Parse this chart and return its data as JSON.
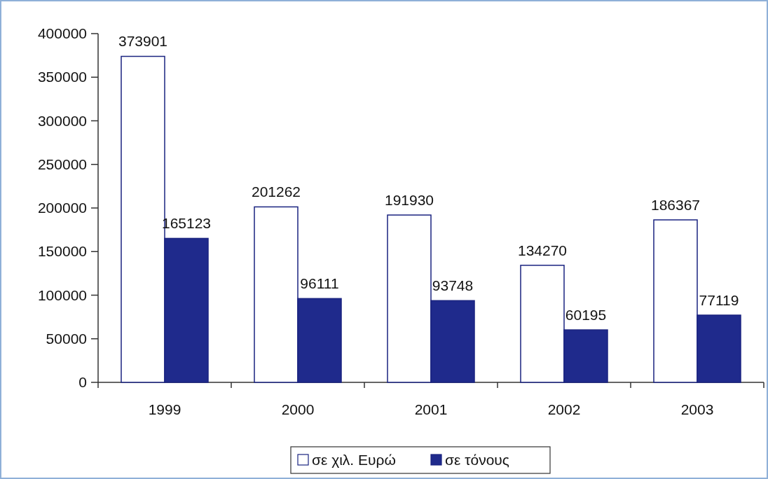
{
  "chart_data": {
    "type": "bar",
    "categories": [
      "1999",
      "2000",
      "2001",
      "2002",
      "2003"
    ],
    "series": [
      {
        "name": "σε χιλ. Ευρώ",
        "color": "#ffffff",
        "values": [
          373901,
          201262,
          191930,
          134270,
          186367
        ]
      },
      {
        "name": "σε τόνους",
        "color": "#1f2a8c",
        "values": [
          165123,
          96111,
          93748,
          60195,
          77119
        ]
      }
    ],
    "ylim": [
      0,
      400000
    ],
    "yticks": [
      0,
      50000,
      100000,
      150000,
      200000,
      250000,
      300000,
      350000,
      400000
    ],
    "data_labels": true,
    "grid": false,
    "legend": "bottom"
  }
}
